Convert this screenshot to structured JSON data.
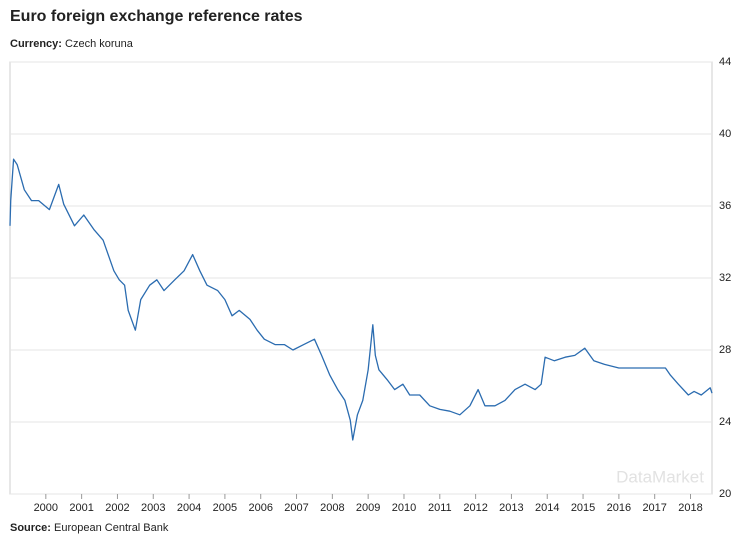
{
  "chart_data": {
    "type": "line",
    "title": "Euro foreign exchange reference rates",
    "subtitle_label": "Currency:",
    "subtitle": "Czech koruna",
    "source_label": "Source:",
    "source": "European Central Bank",
    "watermark": "DataMarket",
    "color": "#2b6cb0",
    "grid": true,
    "x": [
      1999.0,
      1999.02,
      1999.1,
      1999.2,
      1999.4,
      1999.6,
      1999.8,
      2000.1,
      2000.36,
      2000.5,
      2000.8,
      2001.06,
      2001.34,
      2001.6,
      2001.9,
      2002.05,
      2002.2,
      2002.3,
      2002.5,
      2002.65,
      2002.9,
      2003.1,
      2003.3,
      2003.6,
      2003.86,
      2004.1,
      2004.3,
      2004.5,
      2004.8,
      2005.0,
      2005.2,
      2005.4,
      2005.7,
      2005.9,
      2006.1,
      2006.4,
      2006.66,
      2006.9,
      2007.2,
      2007.5,
      2007.7,
      2007.93,
      2008.15,
      2008.35,
      2008.5,
      2008.57,
      2008.7,
      2008.85,
      2009.0,
      2009.13,
      2009.2,
      2009.3,
      2009.55,
      2009.74,
      2009.97,
      2010.16,
      2010.44,
      2010.72,
      2011.0,
      2011.28,
      2011.56,
      2011.84,
      2012.07,
      2012.26,
      2012.54,
      2012.82,
      2013.1,
      2013.38,
      2013.66,
      2013.83,
      2013.94,
      2014.2,
      2014.5,
      2014.77,
      2015.05,
      2015.3,
      2015.6,
      2016.0,
      2016.6,
      2017.3,
      2017.44,
      2017.66,
      2017.94,
      2018.1,
      2018.3,
      2018.55,
      2018.6
    ],
    "values": [
      34.9,
      36.3,
      38.6,
      38.3,
      36.9,
      36.3,
      36.3,
      35.8,
      37.2,
      36.1,
      34.9,
      35.5,
      34.7,
      34.1,
      32.4,
      31.9,
      31.6,
      30.2,
      29.1,
      30.8,
      31.6,
      31.9,
      31.3,
      31.9,
      32.4,
      33.3,
      32.4,
      31.6,
      31.3,
      30.8,
      29.9,
      30.2,
      29.7,
      29.1,
      28.6,
      28.3,
      28.3,
      28.0,
      28.3,
      28.6,
      27.7,
      26.6,
      25.8,
      25.2,
      24.1,
      23.0,
      24.4,
      25.2,
      26.9,
      29.4,
      27.7,
      26.9,
      26.3,
      25.8,
      26.1,
      25.5,
      25.5,
      24.9,
      24.7,
      24.6,
      24.4,
      24.9,
      25.8,
      24.9,
      24.9,
      25.2,
      25.8,
      26.1,
      25.8,
      26.1,
      27.6,
      27.4,
      27.6,
      27.7,
      28.1,
      27.4,
      27.2,
      27.0,
      27.0,
      27.0,
      26.6,
      26.1,
      25.5,
      25.7,
      25.5,
      25.9,
      25.6
    ],
    "xlim": [
      1999.0,
      2018.6
    ],
    "xticks": [
      2000,
      2001,
      2002,
      2003,
      2004,
      2005,
      2006,
      2007,
      2008,
      2009,
      2010,
      2011,
      2012,
      2013,
      2014,
      2015,
      2016,
      2017,
      2018
    ],
    "ylim": [
      20,
      44
    ],
    "yticks": [
      20,
      24,
      28,
      32,
      36,
      40,
      44
    ]
  }
}
